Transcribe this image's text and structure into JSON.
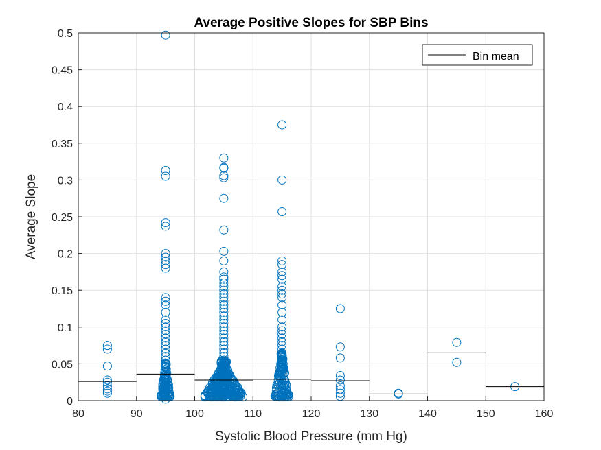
{
  "colors": {
    "marker": "#0072BD",
    "mean_line": "#000000",
    "grid": "#e0e0e0",
    "axis": "#262626"
  },
  "chart_data": {
    "type": "scatter",
    "title": "Average Positive Slopes for SBP Bins",
    "xlabel": "Systolic Blood Pressure (mm Hg)",
    "ylabel": "Average Slope",
    "xlim": [
      80,
      160
    ],
    "ylim": [
      0,
      0.5
    ],
    "x_ticks": [
      "80",
      "90",
      "100",
      "110",
      "120",
      "130",
      "140",
      "150",
      "160"
    ],
    "y_ticks": [
      "0",
      "0.05",
      "0.1",
      "0.15",
      "0.2",
      "0.25",
      "0.3",
      "0.35",
      "0.4",
      "0.45",
      "0.5"
    ],
    "grid": true,
    "legend": {
      "entries": [
        "Bin mean"
      ],
      "placement": "top-right"
    },
    "bins": [
      {
        "range": [
          80,
          90
        ],
        "mean": 0.026
      },
      {
        "range": [
          90,
          100
        ],
        "mean": 0.036
      },
      {
        "range": [
          100,
          110
        ],
        "mean": 0.028
      },
      {
        "range": [
          110,
          120
        ],
        "mean": 0.029
      },
      {
        "range": [
          120,
          130
        ],
        "mean": 0.027
      },
      {
        "range": [
          130,
          140
        ],
        "mean": 0.009
      },
      {
        "range": [
          140,
          150
        ],
        "mean": 0.065
      },
      {
        "range": [
          150,
          160
        ],
        "mean": 0.019
      }
    ],
    "series": [
      {
        "x": 85,
        "y": [
          0.075,
          0.07,
          0.047,
          0.028,
          0.025,
          0.02,
          0.016,
          0.013,
          0.01
        ]
      },
      {
        "x": 95,
        "y": [
          0.497,
          0.313,
          0.305,
          0.242,
          0.237,
          0.2,
          0.195,
          0.19,
          0.185,
          0.18,
          0.14,
          0.135,
          0.13,
          0.12,
          0.11,
          0.105,
          0.1,
          0.095,
          0.09,
          0.085,
          0.08,
          0.075,
          0.07,
          0.065,
          0.06,
          0.055,
          0.05,
          0.045,
          0.04,
          0.035,
          0.03,
          0.025,
          0.02,
          0.015,
          0.01,
          0.005,
          0.002
        ]
      },
      {
        "x": 105,
        "y": [
          0.33,
          0.317,
          0.316,
          0.306,
          0.303,
          0.275,
          0.232,
          0.203,
          0.19,
          0.175,
          0.168,
          0.165,
          0.16,
          0.155,
          0.15,
          0.145,
          0.14,
          0.135,
          0.13,
          0.125,
          0.12,
          0.115,
          0.11,
          0.105,
          0.1,
          0.095,
          0.09,
          0.085,
          0.08,
          0.075,
          0.07,
          0.065,
          0.06,
          0.055,
          0.05,
          0.045,
          0.04,
          0.035,
          0.03,
          0.025,
          0.02,
          0.015,
          0.01,
          0.005
        ]
      },
      {
        "x": 115,
        "y": [
          0.375,
          0.3,
          0.257,
          0.19,
          0.185,
          0.175,
          0.17,
          0.165,
          0.155,
          0.15,
          0.145,
          0.14,
          0.13,
          0.12,
          0.11,
          0.1,
          0.095,
          0.09,
          0.085,
          0.08,
          0.075,
          0.07,
          0.065,
          0.06,
          0.055,
          0.05,
          0.045,
          0.04,
          0.035,
          0.03,
          0.025,
          0.02,
          0.015,
          0.01,
          0.005
        ]
      },
      {
        "x": 125,
        "y": [
          0.125,
          0.073,
          0.058,
          0.034,
          0.028,
          0.02,
          0.015,
          0.01,
          0.006
        ]
      },
      {
        "x": 135,
        "y": [
          0.01,
          0.009
        ]
      },
      {
        "x": 145,
        "y": [
          0.079,
          0.052
        ]
      },
      {
        "x": 155,
        "y": [
          0.019
        ]
      }
    ]
  }
}
